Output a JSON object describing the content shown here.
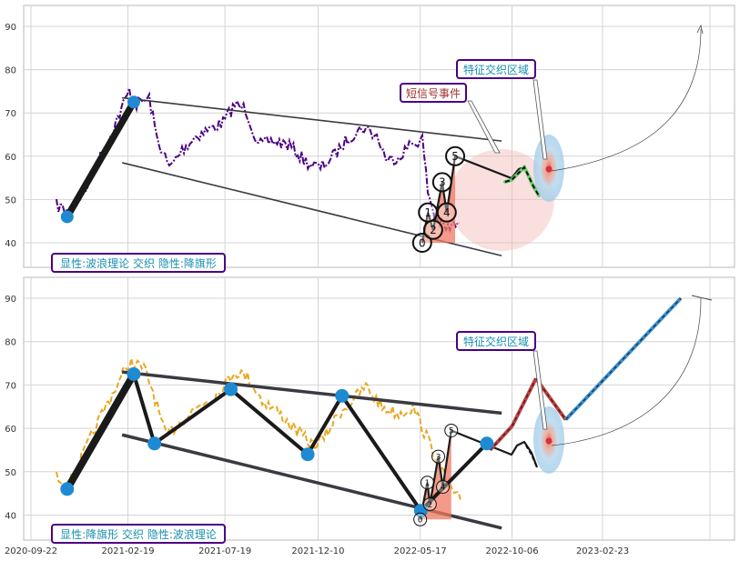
{
  "colors": {
    "grid": "#d4d4d4",
    "frame": "#b8b8b8",
    "price_top": "#4b0082",
    "price_bottom": "#e8a820",
    "trend_line": "#3a3a42",
    "wave_line": "#1a1a1a",
    "pivot": "#1f8ad1",
    "label_border": "#4b0082",
    "label_text_teal": "#1a8fb0",
    "label_text_red": "#a03030",
    "signal_fill": "#f07860",
    "zone_fill": "#9ccbe8",
    "ellipse_red": "#f5b8b8",
    "dash_green": "#6ccf6c",
    "proj_red": "#c04040",
    "proj_blue": "#3a8fd0"
  },
  "chart_data": [
    {
      "type": "line",
      "panel": "top",
      "series_name": "",
      "ylim": [
        34,
        96
      ],
      "yticks": [
        40,
        50,
        60,
        70,
        80,
        90
      ],
      "xlim": [
        "2020-09-22",
        "2023-07-25"
      ],
      "xticks": [],
      "grid": true,
      "pivots": [
        {
          "x": "2020-11-17",
          "y": 46
        },
        {
          "x": "2021-02-28",
          "y": 72.5
        }
      ],
      "channel": {
        "upper": [
          {
            "x": "2021-02-10",
            "y": 73.5
          },
          {
            "x": "2022-09-20",
            "y": 63.5
          }
        ],
        "lower": [
          {
            "x": "2021-02-10",
            "y": 58.5
          },
          {
            "x": "2022-09-20",
            "y": 37
          }
        ]
      },
      "wave_labels": [
        {
          "label": "0",
          "x": "2022-05-20",
          "y": 40
        },
        {
          "label": "1",
          "x": "2022-05-29",
          "y": 47
        },
        {
          "label": "2",
          "x": "2022-06-06",
          "y": 43
        },
        {
          "label": "3",
          "x": "2022-06-20",
          "y": 54
        },
        {
          "label": "4",
          "x": "2022-06-27",
          "y": 47
        },
        {
          "label": "5",
          "x": "2022-07-10",
          "y": 60
        }
      ],
      "callouts": [
        {
          "key": "signal",
          "text": "短信号事件"
        },
        {
          "key": "zone",
          "text": "特征交织区域"
        }
      ],
      "caption": "显性:波浪理论 交织 隐性:降旗形"
    },
    {
      "type": "line",
      "panel": "bottom",
      "series_name": "",
      "ylim": [
        34,
        96
      ],
      "yticks": [
        40,
        50,
        60,
        70,
        80,
        90
      ],
      "xlim": [
        "2020-09-22",
        "2023-07-25"
      ],
      "xticks": [
        "2020-09-22",
        "2021-02-19",
        "2021-07-19",
        "2021-12-10",
        "2022-05-17",
        "2022-10-06",
        "2023-02-23"
      ],
      "grid": true,
      "pivots": [
        {
          "x": "2020-11-17",
          "y": 46
        },
        {
          "x": "2021-02-28",
          "y": 72.5
        },
        {
          "x": "2021-04-01",
          "y": 56.5
        },
        {
          "x": "2021-07-28",
          "y": 69
        },
        {
          "x": "2021-11-24",
          "y": 54
        },
        {
          "x": "2022-01-16",
          "y": 67.5
        },
        {
          "x": "2022-05-18",
          "y": 41
        },
        {
          "x": "2022-08-28",
          "y": 56.5
        }
      ],
      "channel": {
        "upper": [
          {
            "x": "2021-02-10",
            "y": 73
          },
          {
            "x": "2022-09-20",
            "y": 63.5
          }
        ],
        "lower": [
          {
            "x": "2021-02-10",
            "y": 58.5
          },
          {
            "x": "2022-09-20",
            "y": 37
          }
        ]
      },
      "wave_labels": [
        {
          "label": "0",
          "x": "2022-05-17",
          "y": 39
        },
        {
          "label": "1",
          "x": "2022-05-28",
          "y": 47.5
        },
        {
          "label": "2",
          "x": "2022-06-01",
          "y": 42.5
        },
        {
          "label": "3",
          "x": "2022-06-14",
          "y": 53.5
        },
        {
          "label": "4",
          "x": "2022-06-21",
          "y": 46.5
        },
        {
          "label": "5",
          "x": "2022-07-04",
          "y": 59.5
        }
      ],
      "projection": [
        {
          "x": "2022-09-02",
          "y": 55
        },
        {
          "x": "2022-10-06",
          "y": 60.5
        },
        {
          "x": "2022-11-12",
          "y": 71.5
        },
        {
          "x": "2022-12-28",
          "y": 62
        },
        {
          "x": "2023-06-24",
          "y": 90
        }
      ],
      "callouts": [
        {
          "key": "zone",
          "text": "特征交织区域"
        }
      ],
      "caption": "显性:降旗形 交织 隐性:波浪理论"
    }
  ]
}
